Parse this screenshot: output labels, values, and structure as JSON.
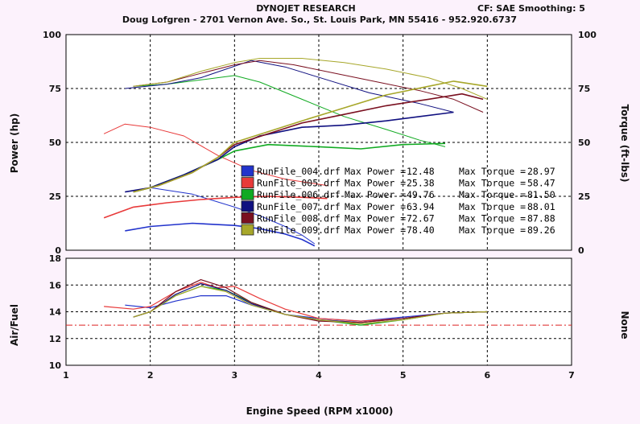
{
  "header": {
    "title": "DYNOJET RESEARCH",
    "subtitle": "Doug Lofgren - 2701 Vernon Ave. So., St. Louis Park, MN 55416 - 952.920.6737",
    "cf_label": "CF: SAE  Smoothing: 5"
  },
  "chart_data": [
    {
      "type": "line",
      "panel": "power_torque",
      "ylabel_left": "Power (hp)",
      "ylabel_right": "Torque (ft-lbs)",
      "xlim": [
        1,
        7
      ],
      "ylim": [
        0,
        100
      ],
      "y_ticks": [
        "0",
        "25",
        "50",
        "75",
        "100"
      ],
      "y_ticks_right": [
        "0",
        "25",
        "50",
        "75",
        "100"
      ],
      "grid": true,
      "legend_position": "bottom-center",
      "series": [
        {
          "name": "RunFile_004.drf",
          "color": "#2233cc",
          "power": {
            "x": [
              1.7,
              2.0,
              2.5,
              3.0,
              3.3,
              3.6,
              3.8,
              3.95
            ],
            "y": [
              9,
              11,
              12.5,
              11.5,
              10,
              7.5,
              5,
              2
            ]
          },
          "torque": {
            "x": [
              1.7,
              2.0,
              2.5,
              3.0,
              3.3,
              3.6,
              3.8,
              3.95
            ],
            "y": [
              27,
              29,
              26,
              20,
              16,
              11,
              7,
              3
            ]
          },
          "max_power": "12.48",
          "max_torque": "28.97"
        },
        {
          "name": "RunFile_005.drf",
          "color": "#e83a3a",
          "power": {
            "x": [
              1.45,
              1.8,
              2.2,
              2.6,
              3.0,
              3.4,
              3.8,
              4.1
            ],
            "y": [
              15,
              20,
              22,
              23.5,
              24.5,
              25,
              24.5,
              24
            ]
          },
          "torque": {
            "x": [
              1.45,
              1.7,
              2.0,
              2.4,
              2.8,
              3.2,
              3.6,
              4.1
            ],
            "y": [
              54,
              58.5,
              57,
              53,
              44,
              37,
              33,
              30
            ]
          },
          "max_power": "25.38",
          "max_torque": "58.47"
        },
        {
          "name": "RunFile_006.drf",
          "color": "#11aa22",
          "power": {
            "x": [
              1.8,
              2.0,
              2.4,
              2.8,
              3.0,
              3.4,
              4.0,
              4.5,
              5.0,
              5.5
            ],
            "y": [
              27,
              29,
              35,
              42,
              46,
              49,
              48,
              47,
              49,
              49.5
            ]
          },
          "torque": {
            "x": [
              1.8,
              2.2,
              2.6,
              3.0,
              3.3,
              3.8,
              4.3,
              4.8,
              5.2,
              5.5
            ],
            "y": [
              76,
              77,
              79,
              81,
              78,
              70,
              62,
              56,
              51,
              48
            ]
          },
          "max_power": "49.76",
          "max_torque": "81.50"
        },
        {
          "name": "RunFile_007.drf",
          "color": "#101080",
          "power": {
            "x": [
              1.7,
              2.0,
              2.4,
              2.8,
              3.0,
              3.3,
              3.8,
              4.3,
              4.8,
              5.2,
              5.6
            ],
            "y": [
              27,
              29,
              35,
              42,
              48,
              53,
              57,
              58,
              60,
              62,
              64
            ]
          },
          "torque": {
            "x": [
              1.7,
              2.2,
              2.6,
              2.9,
              3.2,
              3.6,
              4.1,
              4.6,
              5.2,
              5.6
            ],
            "y": [
              75,
              77,
              80,
              84,
              88,
              85,
              79,
              73,
              68,
              64
            ]
          },
          "max_power": "63.94",
          "max_torque": "88.01"
        },
        {
          "name": "RunFile_008.drf",
          "color": "#7a1020",
          "power": {
            "x": [
              1.8,
              2.1,
              2.5,
              2.8,
              3.0,
              3.4,
              3.8,
              4.3,
              4.8,
              5.3,
              5.7,
              5.95
            ],
            "y": [
              27,
              30,
              36,
              43,
              49,
              54,
              59,
              63,
              67,
              70,
              72.5,
              70
            ]
          },
          "torque": {
            "x": [
              1.8,
              2.2,
              2.6,
              3.0,
              3.3,
              3.7,
              4.2,
              4.7,
              5.2,
              5.6,
              5.95
            ],
            "y": [
              76,
              78,
              82,
              86,
              88,
              86,
              82,
              78,
              74,
              70,
              64
            ]
          },
          "max_power": "72.67",
          "max_torque": "87.88"
        },
        {
          "name": "RunFile_009.drf",
          "color": "#a7a72a",
          "power": {
            "x": [
              1.8,
              2.1,
              2.5,
              2.8,
              3.0,
              3.4,
              3.8,
              4.3,
              4.8,
              5.3,
              5.6,
              6.0
            ],
            "y": [
              27,
              30,
              36,
              43,
              50,
              55,
              60,
              66,
              72,
              76,
              78.4,
              76
            ]
          },
          "torque": {
            "x": [
              1.8,
              2.2,
              2.6,
              3.0,
              3.3,
              3.8,
              4.3,
              4.8,
              5.3,
              5.7,
              6.0
            ],
            "y": [
              76,
              78,
              83,
              87,
              89,
              89,
              87,
              84,
              80,
              75,
              70
            ]
          },
          "max_power": "78.40",
          "max_torque": "89.26"
        }
      ],
      "legend_labels": {
        "max_power": "Max Power =",
        "max_torque": "Max Torque ="
      }
    },
    {
      "type": "line",
      "panel": "air_fuel",
      "ylabel_left": "Air/Fuel",
      "ylabel_right": "None",
      "xlabel": "Engine Speed (RPM x1000)",
      "xlim": [
        1,
        7
      ],
      "ylim": [
        10,
        18
      ],
      "x_ticks": [
        "1",
        "2",
        "3",
        "4",
        "5",
        "6",
        "7"
      ],
      "y_ticks": [
        "10",
        "12",
        "14",
        "16",
        "18"
      ],
      "grid": true,
      "reference_line": {
        "y": 13,
        "color": "#dd2222",
        "style": "dash-dot"
      },
      "series": [
        {
          "name": "RunFile_004.drf",
          "color": "#2233cc",
          "x": [
            1.7,
            2.0,
            2.3,
            2.6,
            2.9,
            3.2,
            3.6,
            4.0,
            4.5,
            5.0,
            5.5,
            6.0
          ],
          "y": [
            14.5,
            14.3,
            14.8,
            15.2,
            15.2,
            14.5,
            13.8,
            13.5,
            13.3,
            13.6,
            13.9,
            14.0
          ]
        },
        {
          "name": "RunFile_005.drf",
          "color": "#e83a3a",
          "x": [
            1.45,
            1.8,
            2.0,
            2.3,
            2.6,
            2.8,
            3.0,
            3.3,
            3.6,
            4.0,
            4.5,
            5.0,
            5.5,
            6.0
          ],
          "y": [
            14.4,
            14.2,
            14.4,
            15.5,
            16.2,
            15.8,
            15.9,
            15.0,
            14.2,
            13.5,
            13.3,
            13.5,
            13.9,
            14.0
          ]
        },
        {
          "name": "RunFile_006.drf",
          "color": "#11aa22",
          "x": [
            1.8,
            2.0,
            2.3,
            2.6,
            2.9,
            3.2,
            3.6,
            4.0,
            4.5,
            5.0,
            5.5,
            6.0
          ],
          "y": [
            13.6,
            14.0,
            15.2,
            15.9,
            15.6,
            14.7,
            13.8,
            13.4,
            13.0,
            13.4,
            13.9,
            14.0
          ]
        },
        {
          "name": "RunFile_007.drf",
          "color": "#101080",
          "x": [
            1.8,
            2.0,
            2.3,
            2.6,
            2.9,
            3.2,
            3.6,
            4.0,
            4.5,
            5.0,
            5.5,
            6.0
          ],
          "y": [
            13.6,
            14.0,
            15.3,
            16.1,
            15.6,
            14.6,
            13.8,
            13.4,
            13.2,
            13.5,
            13.9,
            14.0
          ]
        },
        {
          "name": "RunFile_008.drf",
          "color": "#7a1020",
          "x": [
            1.8,
            2.0,
            2.3,
            2.6,
            2.9,
            3.2,
            3.6,
            4.0,
            4.5,
            5.0,
            5.5,
            6.0
          ],
          "y": [
            13.6,
            14.0,
            15.5,
            16.4,
            15.8,
            14.7,
            13.8,
            13.3,
            13.2,
            13.5,
            13.9,
            14.0
          ]
        },
        {
          "name": "RunFile_009.drf",
          "color": "#a7a72a",
          "x": [
            1.8,
            2.0,
            2.3,
            2.6,
            2.9,
            3.2,
            3.6,
            4.0,
            4.5,
            5.0,
            5.5,
            6.0
          ],
          "y": [
            13.6,
            14.0,
            15.2,
            15.9,
            15.5,
            14.5,
            13.8,
            13.4,
            13.1,
            13.4,
            13.9,
            14.0
          ]
        }
      ]
    }
  ]
}
